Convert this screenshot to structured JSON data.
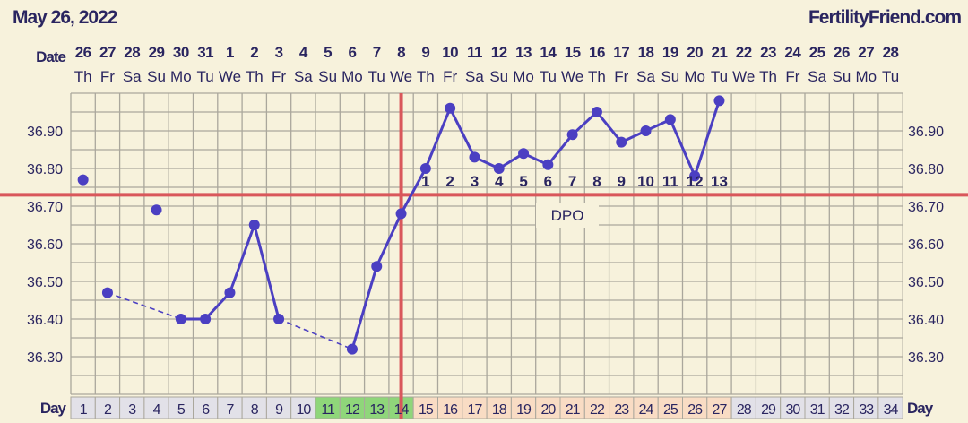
{
  "header": {
    "date": "May 26, 2022",
    "site": "FertilityFriend.com"
  },
  "chart_data": {
    "type": "line",
    "ylim": [
      36.2,
      37.0
    ],
    "y_ticks": [
      "36.30",
      "36.40",
      "36.50",
      "36.60",
      "36.70",
      "36.80",
      "36.90"
    ],
    "grid": true,
    "date_label": "Date",
    "day_label": "Day",
    "dates": [
      "26",
      "27",
      "28",
      "29",
      "30",
      "31",
      "1",
      "2",
      "3",
      "4",
      "5",
      "6",
      "7",
      "8",
      "9",
      "10",
      "11",
      "12",
      "13",
      "14",
      "15",
      "16",
      "17",
      "18",
      "19",
      "20",
      "21",
      "22",
      "23",
      "24",
      "25",
      "26",
      "27",
      "28"
    ],
    "weekdays": [
      "Th",
      "Fr",
      "Sa",
      "Su",
      "Mo",
      "Tu",
      "We",
      "Th",
      "Fr",
      "Sa",
      "Su",
      "Mo",
      "Tu",
      "We",
      "Th",
      "Fr",
      "Sa",
      "Su",
      "Mo",
      "Tu",
      "We",
      "Th",
      "Fr",
      "Sa",
      "Su",
      "Mo",
      "Tu",
      "We",
      "Th",
      "Fr",
      "Sa",
      "Su",
      "Mo",
      "Tu"
    ],
    "days": [
      1,
      2,
      3,
      4,
      5,
      6,
      7,
      8,
      9,
      10,
      11,
      12,
      13,
      14,
      15,
      16,
      17,
      18,
      19,
      20,
      21,
      22,
      23,
      24,
      25,
      26,
      27,
      28,
      29,
      30,
      31,
      32,
      33,
      34
    ],
    "temperatures": [
      36.77,
      36.47,
      null,
      36.69,
      36.4,
      36.4,
      36.47,
      36.65,
      36.4,
      null,
      null,
      36.32,
      36.54,
      36.68,
      36.8,
      36.96,
      36.83,
      36.8,
      36.84,
      36.81,
      36.89,
      36.95,
      36.87,
      36.9,
      36.93,
      36.78,
      36.98,
      null,
      null,
      null,
      null,
      null,
      null,
      null
    ],
    "isolated_days": [
      1,
      4
    ],
    "dashed_segments": [
      [
        2,
        5
      ],
      [
        9,
        12
      ]
    ],
    "coverline": 36.73,
    "ovulation_day": 14,
    "dpo_label": "DPO",
    "dpo": {
      "start_day": 15,
      "labels": [
        "1",
        "2",
        "3",
        "4",
        "5",
        "6",
        "7",
        "8",
        "9",
        "10",
        "11",
        "12",
        "13"
      ]
    },
    "day_colors": {
      "fertile_days": [
        11,
        12,
        13,
        14
      ],
      "luteal_days": [
        15,
        27
      ],
      "fertile": "#8fd67a",
      "luteal": "#f9dcc4",
      "other": "#e2e1e8"
    },
    "colors": {
      "line": "#4b3fc2",
      "coverline": "#d9575b",
      "grid": "#aaa79c",
      "background": "#f7f2dc"
    }
  }
}
